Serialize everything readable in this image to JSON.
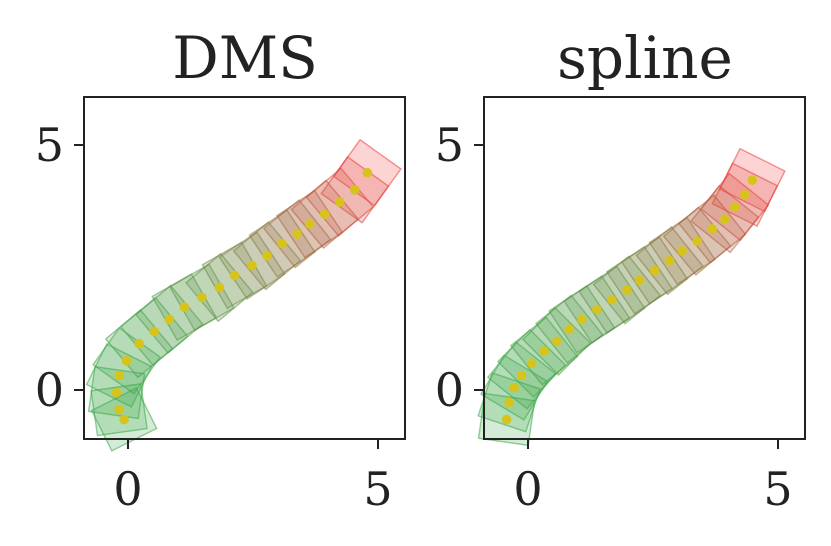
{
  "chart_data": [
    {
      "type": "scatter",
      "title": "DMS",
      "xlabel": "",
      "ylabel": "",
      "xlim": [
        -0.9,
        5.5
      ],
      "ylim": [
        -1.0,
        6.0
      ],
      "xticks": [
        0,
        5
      ],
      "yticks": [
        0,
        5
      ],
      "xtick_labels": [
        "0",
        "5"
      ],
      "ytick_labels": [
        "0",
        "5"
      ],
      "grid": false,
      "colors": {
        "start": "#3ca84a",
        "end": "#f03a3a",
        "points": "#d6c41c"
      },
      "series": [
        {
          "values": [
            {
              "x": -0.1,
              "y": -0.6
            },
            {
              "x": -0.2,
              "y": -0.4
            },
            {
              "x": -0.25,
              "y": -0.05
            },
            {
              "x": -0.2,
              "y": 0.3
            },
            {
              "x": -0.05,
              "y": 0.6
            },
            {
              "x": 0.2,
              "y": 0.95
            },
            {
              "x": 0.5,
              "y": 1.2
            },
            {
              "x": 0.8,
              "y": 1.45
            },
            {
              "x": 1.1,
              "y": 1.7
            },
            {
              "x": 1.45,
              "y": 1.9
            },
            {
              "x": 1.8,
              "y": 2.1
            },
            {
              "x": 2.1,
              "y": 2.35
            },
            {
              "x": 2.45,
              "y": 2.55
            },
            {
              "x": 2.75,
              "y": 2.75
            },
            {
              "x": 3.05,
              "y": 3.0
            },
            {
              "x": 3.35,
              "y": 3.2
            },
            {
              "x": 3.6,
              "y": 3.4
            },
            {
              "x": 3.9,
              "y": 3.6
            },
            {
              "x": 4.2,
              "y": 3.85
            },
            {
              "x": 4.5,
              "y": 4.1
            },
            {
              "x": 4.75,
              "y": 4.45
            }
          ]
        }
      ]
    },
    {
      "type": "scatter",
      "title": "spline",
      "xlabel": "",
      "ylabel": "",
      "xlim": [
        -0.9,
        5.5
      ],
      "ylim": [
        -1.0,
        6.0
      ],
      "xticks": [
        0,
        5
      ],
      "yticks": [
        0,
        5
      ],
      "xtick_labels": [
        "0",
        "5"
      ],
      "ytick_labels": [
        "0",
        "5"
      ],
      "grid": false,
      "colors": {
        "start": "#3ca84a",
        "end": "#f03a3a",
        "points": "#d6c41c"
      },
      "series": [
        {
          "values": [
            {
              "x": -0.45,
              "y": -0.6
            },
            {
              "x": -0.4,
              "y": -0.25
            },
            {
              "x": -0.3,
              "y": 0.05
            },
            {
              "x": -0.15,
              "y": 0.3
            },
            {
              "x": 0.05,
              "y": 0.55
            },
            {
              "x": 0.3,
              "y": 0.8
            },
            {
              "x": 0.55,
              "y": 1.0
            },
            {
              "x": 0.8,
              "y": 1.25
            },
            {
              "x": 1.05,
              "y": 1.45
            },
            {
              "x": 1.35,
              "y": 1.65
            },
            {
              "x": 1.65,
              "y": 1.85
            },
            {
              "x": 1.95,
              "y": 2.05
            },
            {
              "x": 2.2,
              "y": 2.25
            },
            {
              "x": 2.5,
              "y": 2.45
            },
            {
              "x": 2.8,
              "y": 2.65
            },
            {
              "x": 3.05,
              "y": 2.85
            },
            {
              "x": 3.35,
              "y": 3.05
            },
            {
              "x": 3.65,
              "y": 3.3
            },
            {
              "x": 3.9,
              "y": 3.5
            },
            {
              "x": 4.1,
              "y": 3.75
            },
            {
              "x": 4.3,
              "y": 4.0
            },
            {
              "x": 4.45,
              "y": 4.3
            }
          ]
        }
      ]
    }
  ]
}
